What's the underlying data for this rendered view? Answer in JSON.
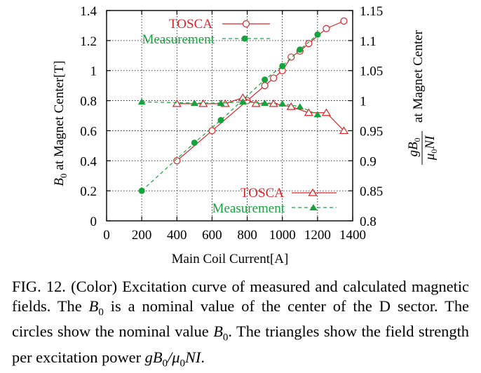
{
  "chart_data": {
    "type": "line",
    "xlabel": "Main Coil Current[A]",
    "ylabel_left": "B0 at Magnet Center[T]",
    "ylabel_right": "gB0/μ0NI at Magnet Center",
    "xlim": [
      0,
      1400
    ],
    "ylim_left": [
      0,
      1.4
    ],
    "ylim_right": [
      0.8,
      1.15
    ],
    "x_ticks": [
      "0",
      "200",
      "400",
      "600",
      "800",
      "1000",
      "1200",
      "1400"
    ],
    "y_left_ticks": [
      "0",
      "0.2",
      "0.4",
      "0.6",
      "0.8",
      "1",
      "1.2",
      "1.4"
    ],
    "y_right_ticks": [
      "0.8",
      "0.85",
      "0.9",
      "0.95",
      "1",
      "1.05",
      "1.1",
      "1.15"
    ],
    "grid": true,
    "series": [
      {
        "name": "TOSCA",
        "axis": "left",
        "marker": "open-circle",
        "line": "solid",
        "color": "#d7262b",
        "x": [
          400,
          600,
          800,
          900,
          950,
          1000,
          1050,
          1100,
          1150,
          1250,
          1350
        ],
        "y": [
          0.4,
          0.6,
          0.8,
          0.9,
          0.95,
          1.0,
          1.09,
          1.13,
          1.18,
          1.28,
          1.33
        ]
      },
      {
        "name": "Measurement",
        "axis": "left",
        "marker": "filled-circle",
        "line": "dashed",
        "color": "#14a33c",
        "x": [
          200,
          500,
          650,
          900,
          1000,
          1100,
          1200
        ],
        "y": [
          0.2,
          0.52,
          0.67,
          0.94,
          1.03,
          1.14,
          1.24
        ]
      },
      {
        "name": "TOSCA",
        "axis": "right",
        "marker": "open-triangle",
        "line": "solid",
        "color": "#d7262b",
        "x": [
          400,
          550,
          675,
          775,
          850,
          950,
          1050,
          1150,
          1250,
          1350
        ],
        "y": [
          0.995,
          0.995,
          0.995,
          1.005,
          0.995,
          0.995,
          0.99,
          0.98,
          0.98,
          0.95
        ]
      },
      {
        "name": "Measurement",
        "axis": "right",
        "marker": "filled-triangle",
        "line": "dashed",
        "color": "#14a33c",
        "x": [
          200,
          500,
          650,
          775,
          900,
          1000,
          1100,
          1200
        ],
        "y": [
          0.998,
          0.996,
          0.996,
          0.998,
          0.996,
          0.995,
          0.99,
          0.977
        ]
      }
    ]
  },
  "legend_top": {
    "tosca": "TOSCA",
    "measurement": "Measurement"
  },
  "legend_bottom": {
    "tosca": "TOSCA",
    "measurement": "Measurement"
  },
  "caption": {
    "lead": "FIG. 12. (Color) Excitation curve of measured and calculated magnetic fields. The ",
    "b0_a": "B",
    "mid1": " is a nominal value of the center of the D sector. The circles show the nominal value ",
    "b0_b": "B",
    "mid2": ". The triangles show the field strength per excitation power ",
    "expr": "gB",
    "end": "."
  },
  "colors": {
    "tosca": "#d7262b",
    "measurement": "#14a33c"
  }
}
